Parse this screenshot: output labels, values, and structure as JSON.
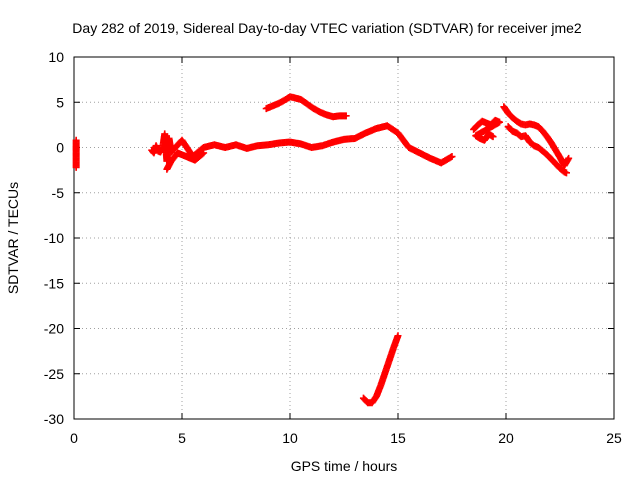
{
  "chart_data": {
    "type": "scatter",
    "title": "Day 282 of 2019, Sidereal Day-to-day VTEC variation (SDTVAR) for receiver jme2",
    "xlabel": "GPS time / hours",
    "ylabel": "SDTVAR / TECUs",
    "xlim": [
      0,
      25
    ],
    "ylim": [
      -30,
      10
    ],
    "xticks": [
      0,
      5,
      10,
      15,
      20,
      25
    ],
    "yticks": [
      -30,
      -25,
      -20,
      -15,
      -10,
      -5,
      0,
      5,
      10
    ],
    "xtick_labels": [
      "0",
      "5",
      "10",
      "15",
      "20",
      "25"
    ],
    "ytick_labels": [
      "-30",
      "-25",
      "-20",
      "-15",
      "-10",
      "-5",
      "0",
      "5",
      "10"
    ],
    "grid": true,
    "marker": "plus",
    "color": "#ff0000",
    "series": [
      {
        "name": "seg-a",
        "x": [
          0.1,
          0.1,
          0.1,
          0.1,
          0.1,
          0.1,
          0.1
        ],
        "y": [
          0.8,
          0.2,
          -0.3,
          -0.6,
          -1.0,
          -1.6,
          -2.2
        ]
      },
      {
        "name": "seg-b",
        "x": [
          3.6,
          3.7,
          3.8,
          3.9,
          4.0,
          4.1,
          4.2,
          4.3,
          4.4,
          4.5,
          5.0,
          5.5,
          6.0,
          6.5,
          7.0,
          7.5,
          8.0,
          8.5,
          9.0,
          9.5,
          10.0,
          10.5,
          11.0,
          11.5,
          12.0,
          12.5,
          13.0,
          13.5,
          14.0,
          14.5,
          15.0,
          15.5,
          16.0,
          16.5,
          17.0,
          17.5
        ],
        "y": [
          -0.3,
          -0.6,
          0.2,
          -0.4,
          -0.5,
          -0.1,
          1.5,
          -1.5,
          1.0,
          -0.5,
          0.8,
          -1.0,
          0.0,
          0.3,
          0.0,
          0.3,
          -0.1,
          0.2,
          0.3,
          0.5,
          0.6,
          0.4,
          0.0,
          0.2,
          0.6,
          0.9,
          1.0,
          1.6,
          2.1,
          2.4,
          1.6,
          0.0,
          -0.6,
          -1.2,
          -1.7,
          -1.0
        ]
      },
      {
        "name": "seg-b-lower",
        "x": [
          4.3,
          4.5,
          4.8,
          5.2,
          5.6,
          6.0
        ],
        "y": [
          -2.4,
          -1.5,
          -0.6,
          -1.0,
          -1.4,
          -0.6
        ]
      },
      {
        "name": "seg-c",
        "x": [
          8.9,
          9.2,
          9.5,
          9.8,
          10.0,
          10.2,
          10.5,
          10.8,
          11.1,
          11.4,
          11.7,
          12.0,
          12.3,
          12.6
        ],
        "y": [
          4.3,
          4.6,
          4.9,
          5.3,
          5.6,
          5.5,
          5.3,
          4.8,
          4.3,
          3.9,
          3.6,
          3.4,
          3.5,
          3.5
        ]
      },
      {
        "name": "seg-d",
        "x": [
          13.4,
          13.6,
          13.8,
          14.0,
          14.2,
          14.4,
          14.6,
          14.8,
          15.0
        ],
        "y": [
          -27.7,
          -28.2,
          -28.2,
          -27.5,
          -26.3,
          -24.9,
          -23.5,
          -22.1,
          -20.8
        ]
      },
      {
        "name": "seg-e",
        "x": [
          18.5,
          18.7,
          18.9,
          19.1,
          19.3,
          19.5,
          19.7,
          18.6,
          18.8,
          19.0,
          19.2,
          19.4
        ],
        "y": [
          2.0,
          2.5,
          2.9,
          2.7,
          2.5,
          3.0,
          2.8,
          1.3,
          1.0,
          0.8,
          1.5,
          1.2
        ]
      },
      {
        "name": "seg-f",
        "x": [
          19.9,
          20.1,
          20.3,
          20.5,
          20.7,
          20.9,
          21.1,
          21.3,
          21.5,
          21.7,
          21.9,
          22.1,
          22.3,
          22.5,
          22.7,
          22.9
        ],
        "y": [
          4.5,
          3.8,
          3.3,
          2.9,
          2.6,
          2.5,
          2.6,
          2.5,
          2.3,
          1.8,
          1.2,
          0.5,
          -0.3,
          -1.1,
          -2.0,
          -1.2
        ]
      },
      {
        "name": "seg-f-lower",
        "x": [
          20.1,
          20.3,
          20.5,
          20.7,
          20.9,
          21.1,
          21.3,
          21.5,
          21.7,
          21.9,
          22.1,
          22.3,
          22.5,
          22.7,
          22.8
        ],
        "y": [
          2.3,
          1.8,
          1.6,
          1.2,
          1.3,
          0.6,
          0.2,
          0.0,
          -0.4,
          -0.8,
          -1.3,
          -1.8,
          -2.3,
          -2.7,
          -2.8
        ]
      }
    ]
  }
}
